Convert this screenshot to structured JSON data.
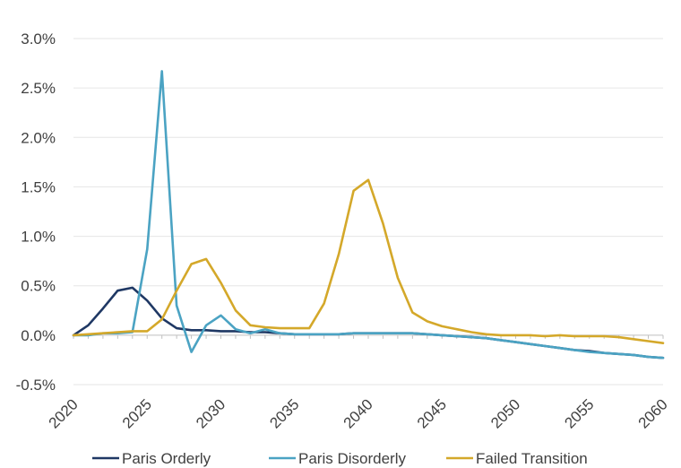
{
  "chart_data": {
    "type": "line",
    "title": "",
    "xlabel": "",
    "ylabel": "",
    "xlim": [
      2020,
      2060
    ],
    "ylim": [
      -0.5,
      3.0
    ],
    "y_ticks": [
      -0.5,
      0.0,
      0.5,
      1.0,
      1.5,
      2.0,
      2.5,
      3.0
    ],
    "y_tick_labels": [
      "-0.5%",
      "0.0%",
      "0.5%",
      "1.0%",
      "1.5%",
      "2.0%",
      "2.5%",
      "3.0%"
    ],
    "x_ticks": [
      2020,
      2025,
      2030,
      2035,
      2040,
      2045,
      2050,
      2055,
      2060
    ],
    "x_tick_labels": [
      "2020",
      "2025",
      "2030",
      "2035",
      "2040",
      "2045",
      "2050",
      "2055",
      "2060"
    ],
    "grid": "horizontal",
    "legend_position": "bottom",
    "x": [
      2020,
      2021,
      2022,
      2023,
      2024,
      2025,
      2026,
      2027,
      2028,
      2029,
      2030,
      2031,
      2032,
      2033,
      2034,
      2035,
      2036,
      2037,
      2038,
      2039,
      2040,
      2041,
      2042,
      2043,
      2044,
      2045,
      2046,
      2047,
      2048,
      2049,
      2050,
      2051,
      2052,
      2053,
      2054,
      2055,
      2056,
      2057,
      2058,
      2059,
      2060
    ],
    "series": [
      {
        "name": "Paris Orderly",
        "color": "#1f3864",
        "values": [
          0.0,
          0.1,
          0.27,
          0.45,
          0.48,
          0.35,
          0.17,
          0.07,
          0.05,
          0.05,
          0.04,
          0.04,
          0.03,
          0.03,
          0.02,
          0.01,
          0.01,
          0.01,
          0.01,
          0.02,
          0.02,
          0.02,
          0.02,
          0.02,
          0.01,
          0.0,
          -0.01,
          -0.02,
          -0.03,
          -0.05,
          -0.07,
          -0.09,
          -0.11,
          -0.13,
          -0.15,
          -0.16,
          -0.18,
          -0.19,
          -0.2,
          -0.22,
          -0.23
        ]
      },
      {
        "name": "Paris Disorderly",
        "color": "#4ba3c3",
        "values": [
          0.0,
          0.0,
          0.02,
          0.02,
          0.03,
          0.87,
          2.67,
          0.3,
          -0.17,
          0.1,
          0.2,
          0.06,
          0.02,
          0.06,
          0.02,
          0.01,
          0.01,
          0.01,
          0.01,
          0.02,
          0.02,
          0.02,
          0.02,
          0.02,
          0.01,
          0.0,
          -0.01,
          -0.02,
          -0.03,
          -0.05,
          -0.07,
          -0.09,
          -0.11,
          -0.13,
          -0.15,
          -0.17,
          -0.18,
          -0.19,
          -0.2,
          -0.22,
          -0.23
        ]
      },
      {
        "name": "Failed Transition",
        "color": "#d4a82a",
        "values": [
          0.0,
          0.01,
          0.02,
          0.03,
          0.04,
          0.04,
          0.16,
          0.45,
          0.72,
          0.77,
          0.53,
          0.25,
          0.1,
          0.08,
          0.07,
          0.07,
          0.07,
          0.32,
          0.82,
          1.46,
          1.57,
          1.13,
          0.58,
          0.23,
          0.14,
          0.09,
          0.06,
          0.03,
          0.01,
          0.0,
          0.0,
          0.0,
          -0.01,
          0.0,
          -0.01,
          -0.01,
          -0.01,
          -0.02,
          -0.04,
          -0.06,
          -0.08
        ]
      }
    ]
  }
}
